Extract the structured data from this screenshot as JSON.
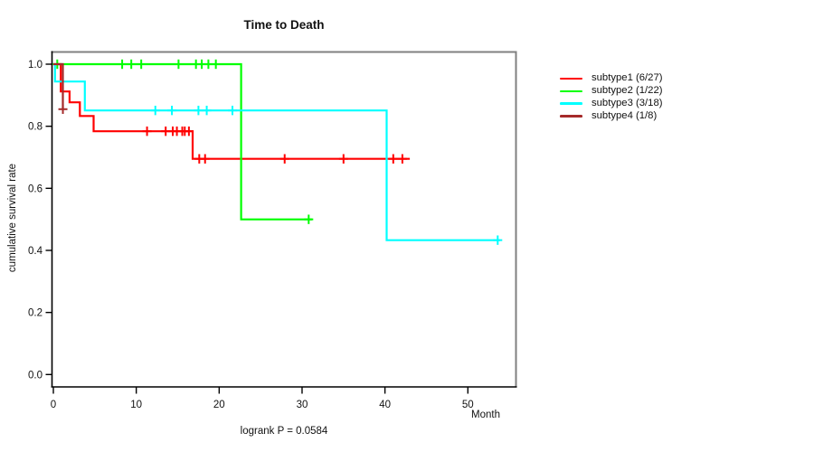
{
  "chart_data": {
    "type": "line",
    "variant": "kaplan-meier-step",
    "title": "Time to Death",
    "ylabel": "cumulative survival rate",
    "xlabel": "Month",
    "footnote": "logrank P = 0.0584",
    "grid": false,
    "legend_position": "right-outside",
    "xlim": [
      0,
      55.8
    ],
    "ylim": [
      0,
      1.0
    ],
    "xticks": [
      0,
      10,
      20,
      30,
      40,
      50
    ],
    "yticks": [
      0.0,
      0.2,
      0.4,
      0.6,
      0.8,
      1.0
    ],
    "axis_colors": {
      "box_top_right": "#808080",
      "axis": "#000000"
    },
    "series": [
      {
        "name": "subtype1 (6/27)",
        "color": "#FF0000",
        "steps": [
          [
            0,
            1.0
          ],
          [
            0.9,
            0.912
          ],
          [
            1.95,
            0.877
          ],
          [
            3.2,
            0.833
          ],
          [
            4.85,
            0.784
          ],
          [
            16.8,
            0.695
          ]
        ],
        "end": 43.0,
        "censors": [
          [
            11.3,
            0.784
          ],
          [
            13.55,
            0.784
          ],
          [
            14.4,
            0.784
          ],
          [
            14.9,
            0.784
          ],
          [
            15.55,
            0.784
          ],
          [
            15.85,
            0.784
          ],
          [
            16.35,
            0.784
          ],
          [
            17.6,
            0.695
          ],
          [
            18.3,
            0.695
          ],
          [
            27.9,
            0.695
          ],
          [
            35.0,
            0.695
          ],
          [
            41.0,
            0.695
          ],
          [
            42.1,
            0.695
          ]
        ]
      },
      {
        "name": "subtype2 (1/22)",
        "color": "#00FF00",
        "steps": [
          [
            0.47,
            1.0
          ],
          [
            22.65,
            0.5
          ]
        ],
        "end": 31.2,
        "censors": [
          [
            0.47,
            1.0
          ],
          [
            8.3,
            1.0
          ],
          [
            9.4,
            1.0
          ],
          [
            10.6,
            1.0
          ],
          [
            15.1,
            1.0
          ],
          [
            17.2,
            1.0
          ],
          [
            17.9,
            1.0
          ],
          [
            18.7,
            1.0
          ],
          [
            19.6,
            1.0
          ],
          [
            30.8,
            0.5
          ]
        ]
      },
      {
        "name": "subtype3 (3/18)",
        "color": "#00FFFF",
        "steps": [
          [
            0,
            1.0
          ],
          [
            0.2,
            0.944
          ],
          [
            3.8,
            0.851
          ],
          [
            40.2,
            0.433
          ]
        ],
        "end": 53.9,
        "censors": [
          [
            12.3,
            0.851
          ],
          [
            14.3,
            0.851
          ],
          [
            17.5,
            0.851
          ],
          [
            18.5,
            0.851
          ],
          [
            21.6,
            0.851
          ],
          [
            53.6,
            0.433
          ]
        ]
      },
      {
        "name": "subtype4 (1/8)",
        "color": "#A52A2A",
        "steps": [
          [
            0,
            1.0
          ],
          [
            1.15,
            0.855
          ]
        ],
        "end": 1.15,
        "censors": [
          [
            1.15,
            0.855
          ]
        ]
      }
    ]
  }
}
